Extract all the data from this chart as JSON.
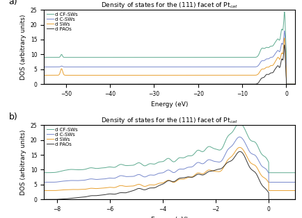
{
  "title": "Density of states for the (111) facet of Pt$_{cat}$",
  "xlabel": "Energy (eV)",
  "ylabel": "DOS (arbitrary units)",
  "legend_labels": [
    "d CF-SWs",
    "d C-SWs",
    "d SWs",
    "d PAOs"
  ],
  "colors": [
    "#5daa8f",
    "#7788cc",
    "#e8a030",
    "#333333"
  ],
  "panel_a": {
    "xlim": [
      -55,
      2
    ],
    "ylim": [
      0,
      25
    ],
    "xticks": [
      -50,
      -40,
      -30,
      -20,
      -10,
      0
    ],
    "yticks": [
      0,
      5,
      10,
      15,
      20,
      25
    ]
  },
  "panel_b": {
    "xlim": [
      -8.5,
      1.0
    ],
    "ylim": [
      0,
      25
    ],
    "xticks": [
      -8,
      -6,
      -4,
      -2,
      0
    ],
    "yticks": [
      0,
      5,
      10,
      15,
      20,
      25
    ]
  }
}
